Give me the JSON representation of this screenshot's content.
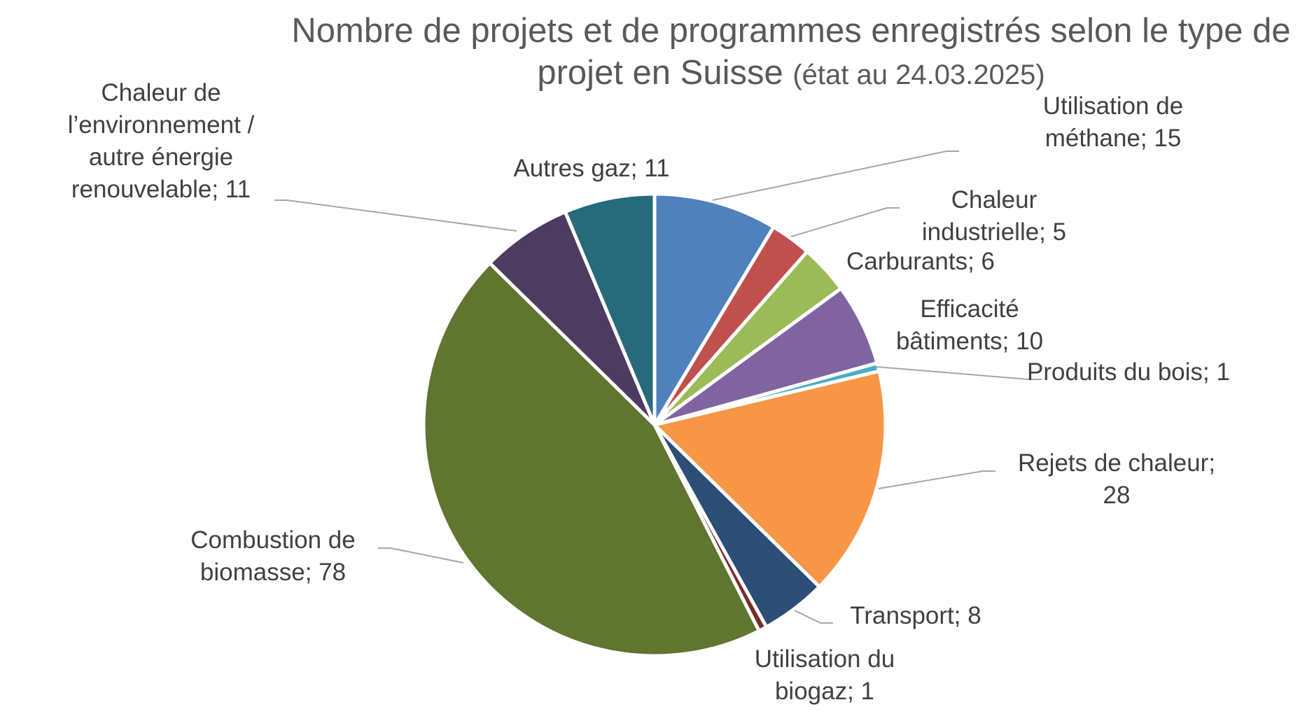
{
  "chart_data": {
    "type": "pie",
    "title": "Nombre de projets et de programmes enregistrés selon le type de projet en Suisse",
    "subtitle": "(état au 24.03.2025)",
    "legend": "none",
    "slices": [
      {
        "label": "Utilisation de méthane",
        "value": 15,
        "color": "#4F81BD",
        "display": "Utilisation de méthane; 15"
      },
      {
        "label": "Chaleur industrielle",
        "value": 5,
        "color": "#C0504D",
        "display": "Chaleur industrielle; 5"
      },
      {
        "label": "Carburants",
        "value": 6,
        "color": "#9BBB59",
        "display": "Carburants; 6"
      },
      {
        "label": "Efficacité bâtiments",
        "value": 10,
        "color": "#8064A2",
        "display": "Efficacité bâtiments; 10"
      },
      {
        "label": "Produits du bois",
        "value": 1,
        "color": "#4BACC6",
        "display": "Produits du bois; 1"
      },
      {
        "label": "Rejets de chaleur",
        "value": 28,
        "color": "#F79646",
        "display": "Rejets de chaleur; 28"
      },
      {
        "label": "Transport",
        "value": 8,
        "color": "#2C4D75",
        "display": "Transport; 8"
      },
      {
        "label": "Utilisation du biogaz",
        "value": 1,
        "color": "#772C2A",
        "display": "Utilisation du biogaz; 1"
      },
      {
        "label": "Combustion de biomasse",
        "value": 78,
        "color": "#5F7530",
        "display": "Combustion de biomasse; 78"
      },
      {
        "label": "Chaleur de l’environnement / autre énergie renouvelable",
        "value": 11,
        "color": "#4D3B62",
        "display": "Chaleur de l’environnement / autre énergie renouvelable; 11"
      },
      {
        "label": "Autres gaz",
        "value": 11,
        "color": "#276A7C",
        "display": "Autres gaz; 11"
      }
    ]
  }
}
